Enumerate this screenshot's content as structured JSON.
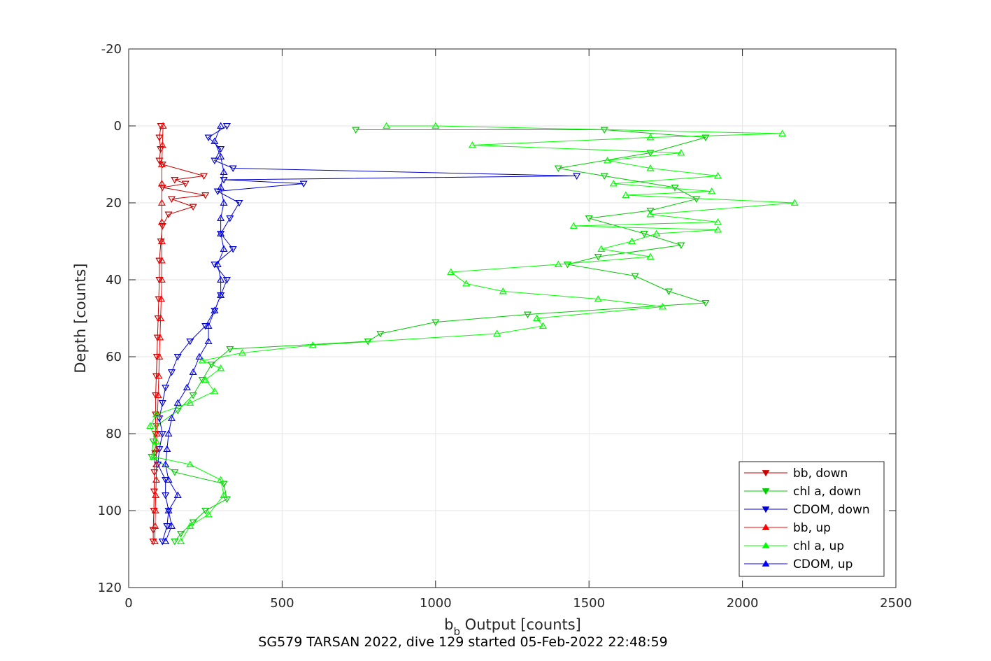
{
  "chart_data": {
    "type": "line",
    "xlabel_main": "b",
    "xlabel_sub": "b",
    "xlabel_rest": " Output [counts]",
    "ylabel": "Depth [counts]",
    "subtitle": "SG579 TARSAN 2022, dive 129 started 05-Feb-2022 22:48:59",
    "xlim": [
      0,
      2500
    ],
    "ylim": [
      -20,
      120
    ],
    "y_reversed": true,
    "grid": true,
    "legend_position": "bottom-right",
    "xticks": [
      "0",
      "500",
      "1000",
      "1500",
      "2000",
      "2500"
    ],
    "yticks": [
      "-20",
      "0",
      "20",
      "40",
      "60",
      "80",
      "100",
      "120"
    ],
    "series": [
      {
        "name": "bb, down",
        "color": "#cc0000",
        "marker": "down",
        "points": [
          [
            105,
            0
          ],
          [
            100,
            3
          ],
          [
            104,
            6
          ],
          [
            100,
            9
          ],
          [
            110,
            10
          ],
          [
            245,
            13
          ],
          [
            150,
            14
          ],
          [
            185,
            15
          ],
          [
            110,
            16
          ],
          [
            250,
            18
          ],
          [
            140,
            19
          ],
          [
            210,
            21
          ],
          [
            130,
            23
          ],
          [
            110,
            26
          ],
          [
            105,
            30
          ],
          [
            100,
            35
          ],
          [
            100,
            40
          ],
          [
            98,
            45
          ],
          [
            96,
            50
          ],
          [
            94,
            55
          ],
          [
            92,
            60
          ],
          [
            90,
            65
          ],
          [
            88,
            70
          ],
          [
            88,
            75
          ],
          [
            87,
            80
          ],
          [
            86,
            85
          ],
          [
            84,
            90
          ],
          [
            83,
            95
          ],
          [
            82,
            100
          ],
          [
            80,
            105
          ],
          [
            80,
            108
          ]
        ]
      },
      {
        "name": "chl a, down",
        "color": "#00cc00",
        "marker": "down",
        "points": [
          [
            740,
            1
          ],
          [
            1550,
            1
          ],
          [
            1880,
            3
          ],
          [
            1700,
            7
          ],
          [
            1400,
            11
          ],
          [
            1550,
            13
          ],
          [
            1780,
            16
          ],
          [
            1850,
            19
          ],
          [
            1700,
            22
          ],
          [
            1500,
            24
          ],
          [
            1680,
            28
          ],
          [
            1800,
            31
          ],
          [
            1530,
            34
          ],
          [
            1430,
            36
          ],
          [
            1650,
            39
          ],
          [
            1760,
            43
          ],
          [
            1880,
            46
          ],
          [
            1300,
            49
          ],
          [
            1000,
            51
          ],
          [
            820,
            54
          ],
          [
            780,
            56
          ],
          [
            330,
            58
          ],
          [
            270,
            62
          ],
          [
            240,
            66
          ],
          [
            210,
            70
          ],
          [
            160,
            74
          ],
          [
            90,
            78
          ],
          [
            80,
            82
          ],
          [
            75,
            86
          ],
          [
            150,
            90
          ],
          [
            310,
            93
          ],
          [
            320,
            97
          ],
          [
            250,
            100
          ],
          [
            210,
            103
          ],
          [
            170,
            106
          ],
          [
            150,
            108
          ]
        ]
      },
      {
        "name": "CDOM, down",
        "color": "#0000cc",
        "marker": "down",
        "points": [
          [
            320,
            0
          ],
          [
            260,
            3
          ],
          [
            300,
            6
          ],
          [
            280,
            9
          ],
          [
            340,
            11
          ],
          [
            1460,
            13
          ],
          [
            310,
            14
          ],
          [
            570,
            15
          ],
          [
            290,
            17
          ],
          [
            360,
            20
          ],
          [
            330,
            24
          ],
          [
            300,
            28
          ],
          [
            340,
            32
          ],
          [
            280,
            36
          ],
          [
            320,
            40
          ],
          [
            300,
            44
          ],
          [
            280,
            48
          ],
          [
            250,
            52
          ],
          [
            200,
            56
          ],
          [
            160,
            60
          ],
          [
            140,
            64
          ],
          [
            120,
            68
          ],
          [
            110,
            72
          ],
          [
            100,
            76
          ],
          [
            110,
            80
          ],
          [
            100,
            84
          ],
          [
            95,
            88
          ],
          [
            120,
            92
          ],
          [
            120,
            96
          ],
          [
            130,
            100
          ],
          [
            125,
            104
          ],
          [
            110,
            108
          ]
        ]
      },
      {
        "name": "bb, up",
        "color": "#ff0000",
        "marker": "up",
        "points": [
          [
            85,
            108
          ],
          [
            86,
            104
          ],
          [
            87,
            100
          ],
          [
            88,
            96
          ],
          [
            90,
            92
          ],
          [
            90,
            88
          ],
          [
            90,
            84
          ],
          [
            92,
            80
          ],
          [
            94,
            75
          ],
          [
            96,
            70
          ],
          [
            98,
            65
          ],
          [
            100,
            60
          ],
          [
            102,
            55
          ],
          [
            104,
            50
          ],
          [
            106,
            45
          ],
          [
            108,
            40
          ],
          [
            108,
            35
          ],
          [
            108,
            30
          ],
          [
            108,
            25
          ],
          [
            108,
            20
          ],
          [
            108,
            15
          ],
          [
            108,
            10
          ],
          [
            110,
            5
          ],
          [
            112,
            0
          ]
        ]
      },
      {
        "name": "chl a, up",
        "color": "#00ff00",
        "marker": "up",
        "points": [
          [
            170,
            108
          ],
          [
            200,
            104
          ],
          [
            260,
            101
          ],
          [
            310,
            96
          ],
          [
            300,
            92
          ],
          [
            200,
            88
          ],
          [
            80,
            86
          ],
          [
            90,
            82
          ],
          [
            70,
            78
          ],
          [
            90,
            75
          ],
          [
            200,
            72
          ],
          [
            280,
            69
          ],
          [
            250,
            66
          ],
          [
            300,
            63
          ],
          [
            240,
            61
          ],
          [
            370,
            59
          ],
          [
            600,
            57
          ],
          [
            1200,
            54
          ],
          [
            1350,
            52
          ],
          [
            1330,
            50
          ],
          [
            1740,
            47
          ],
          [
            1530,
            45
          ],
          [
            1220,
            43
          ],
          [
            1100,
            41
          ],
          [
            1050,
            38
          ],
          [
            1400,
            36
          ],
          [
            1700,
            34
          ],
          [
            1540,
            32
          ],
          [
            1640,
            30
          ],
          [
            1720,
            28
          ],
          [
            1920,
            27
          ],
          [
            1450,
            26
          ],
          [
            1920,
            25
          ],
          [
            1700,
            23
          ],
          [
            2170,
            20
          ],
          [
            1620,
            18
          ],
          [
            1900,
            17
          ],
          [
            1580,
            15
          ],
          [
            1920,
            13
          ],
          [
            1700,
            11
          ],
          [
            1560,
            9
          ],
          [
            1800,
            7
          ],
          [
            1120,
            5
          ],
          [
            1700,
            3
          ],
          [
            2130,
            2
          ],
          [
            1000,
            0
          ],
          [
            840,
            0
          ]
        ]
      },
      {
        "name": "CDOM, up",
        "color": "#0000ff",
        "marker": "up",
        "points": [
          [
            120,
            108
          ],
          [
            140,
            104
          ],
          [
            130,
            100
          ],
          [
            160,
            96
          ],
          [
            130,
            92
          ],
          [
            120,
            88
          ],
          [
            125,
            84
          ],
          [
            130,
            80
          ],
          [
            140,
            76
          ],
          [
            160,
            72
          ],
          [
            190,
            68
          ],
          [
            210,
            64
          ],
          [
            230,
            60
          ],
          [
            260,
            56
          ],
          [
            260,
            52
          ],
          [
            280,
            48
          ],
          [
            300,
            44
          ],
          [
            300,
            40
          ],
          [
            290,
            36
          ],
          [
            310,
            32
          ],
          [
            300,
            28
          ],
          [
            300,
            24
          ],
          [
            310,
            20
          ],
          [
            300,
            16
          ],
          [
            310,
            12
          ],
          [
            300,
            8
          ],
          [
            280,
            4
          ],
          [
            300,
            0
          ]
        ]
      }
    ]
  }
}
